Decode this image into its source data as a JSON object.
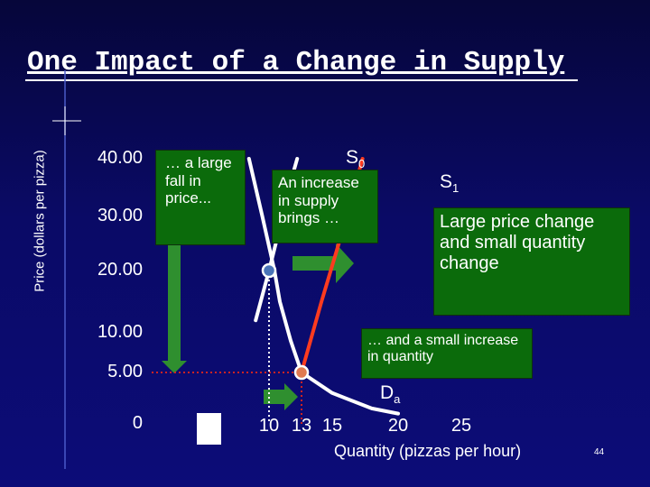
{
  "title": "One Impact of a Change in Supply",
  "page_number": "44",
  "chart_data": {
    "type": "line",
    "xlabel": "Quantity (pizzas per hour)",
    "ylabel": "Price (dollars per pizza)",
    "y_ticks": [
      {
        "value": 40,
        "label": "40.00"
      },
      {
        "value": 30,
        "label": "30.00"
      },
      {
        "value": 20,
        "label": "20.00"
      },
      {
        "value": 10,
        "label": "10.00"
      },
      {
        "value": 5,
        "label": "5.00"
      },
      {
        "value": 0,
        "label": "0"
      }
    ],
    "x_ticks": [
      {
        "value": 10,
        "label": "10"
      },
      {
        "value": 13,
        "label": "13"
      },
      {
        "value": 15,
        "label": "15"
      },
      {
        "value": 20,
        "label": "20"
      },
      {
        "value": 25,
        "label": "25"
      }
    ],
    "series": [
      {
        "name": "Da",
        "name_main": "D",
        "name_sub": "a",
        "color": "#ffffff",
        "points": [
          [
            8.5,
            40
          ],
          [
            9.5,
            30
          ],
          [
            10.5,
            20
          ],
          [
            11,
            15
          ],
          [
            12,
            9
          ],
          [
            13,
            5
          ],
          [
            15,
            3
          ],
          [
            18,
            1.5
          ],
          [
            20,
            1
          ]
        ]
      },
      {
        "name": "S0",
        "name_main": "S",
        "name_sub": "0",
        "color": "#ffffff",
        "points": [
          [
            9,
            12
          ],
          [
            10,
            20
          ],
          [
            11,
            28
          ],
          [
            12,
            36
          ],
          [
            12.6,
            40
          ]
        ]
      },
      {
        "name": "S1",
        "name_main": "S",
        "name_sub": "1",
        "color": "#ff3b1f",
        "points": [
          [
            13,
            5
          ],
          [
            14.3,
            15
          ],
          [
            15.5,
            25
          ],
          [
            16.7,
            35
          ],
          [
            17.3,
            40
          ]
        ]
      }
    ],
    "equilibria": [
      {
        "x": 10,
        "y": 20,
        "color": "#4a74b8"
      },
      {
        "x": 13,
        "y": 5,
        "color": "#e07a50"
      }
    ],
    "annotations": [
      {
        "id": "fall",
        "text": "… a large fall in price..."
      },
      {
        "id": "increase",
        "text": "An increase in supply brings …"
      },
      {
        "id": "large",
        "text": "Large price change and small quantity change"
      },
      {
        "id": "small",
        "text": "… and a small increase in quantity"
      }
    ],
    "colors": {
      "callout_bg": "#0b6b0b",
      "arrow": "#2f8f2f",
      "dotted": "#cc2222"
    }
  }
}
